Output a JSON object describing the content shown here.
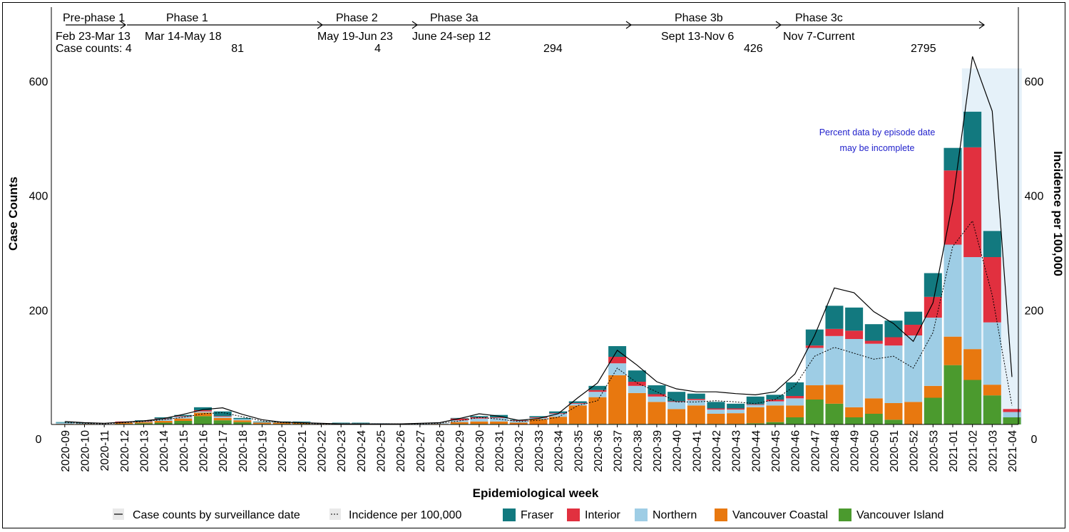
{
  "chart_data": {
    "type": "bar",
    "title": "",
    "xlabel": "Epidemiological week",
    "ylabel": "Case Counts",
    "y2label": "Incidence per 100,000",
    "ylim": [
      0,
      620
    ],
    "y2lim": [
      0,
      620
    ],
    "yticks": [
      0,
      200,
      400,
      600
    ],
    "y2ticks": [
      0,
      200,
      400,
      600
    ],
    "categories": [
      "2020-09",
      "2020-10",
      "2020-11",
      "2020-12",
      "2020-13",
      "2020-14",
      "2020-15",
      "2020-16",
      "2020-17",
      "2020-18",
      "2020-19",
      "2020-20",
      "2020-21",
      "2020-22",
      "2020-23",
      "2020-24",
      "2020-25",
      "2020-26",
      "2020-27",
      "2020-28",
      "2020-29",
      "2020-30",
      "2020-31",
      "2020-32",
      "2020-33",
      "2020-34",
      "2020-35",
      "2020-36",
      "2020-37",
      "2020-38",
      "2020-39",
      "2020-40",
      "2020-41",
      "2020-42",
      "2020-43",
      "2020-44",
      "2020-45",
      "2020-46",
      "2020-47",
      "2020-48",
      "2020-49",
      "2020-50",
      "2020-51",
      "2020-52",
      "2020-53",
      "2021-01",
      "2021-02",
      "2021-03",
      "2021-04"
    ],
    "series": [
      {
        "name": "Vancouver Island",
        "color": "#4b9a2e",
        "values": [
          0,
          0,
          0,
          1,
          2,
          3,
          6,
          14,
          7,
          4,
          1,
          1,
          1,
          0,
          0,
          0,
          0,
          0,
          0,
          0,
          1,
          1,
          1,
          0,
          0,
          1,
          1,
          1,
          1,
          1,
          1,
          1,
          1,
          1,
          1,
          2,
          4,
          12,
          42,
          35,
          12,
          18,
          8,
          0,
          45,
          100,
          75,
          49,
          12
        ]
      },
      {
        "name": "Vancouver Coastal",
        "color": "#e8780f",
        "values": [
          1,
          1,
          0,
          2,
          2,
          3,
          4,
          6,
          4,
          3,
          2,
          2,
          2,
          1,
          1,
          1,
          1,
          0,
          0,
          1,
          3,
          4,
          4,
          3,
          9,
          12,
          31,
          45,
          82,
          52,
          37,
          25,
          31,
          17,
          18,
          27,
          28,
          20,
          24,
          32,
          17,
          26,
          28,
          38,
          20,
          48,
          52,
          18,
          0
        ]
      },
      {
        "name": "Northern",
        "color": "#9ecde5",
        "values": [
          2,
          1,
          0,
          1,
          1,
          3,
          3,
          2,
          2,
          2,
          1,
          1,
          1,
          1,
          1,
          1,
          1,
          1,
          1,
          1,
          3,
          5,
          6,
          3,
          2,
          5,
          3,
          9,
          20,
          12,
          9,
          12,
          9,
          7,
          6,
          4,
          7,
          12,
          63,
          82,
          115,
          92,
          97,
          112,
          115,
          155,
          155,
          105,
          9
        ]
      },
      {
        "name": "Interior",
        "color": "#e1303f",
        "values": [
          0,
          0,
          0,
          1,
          1,
          1,
          1,
          2,
          1,
          0,
          0,
          0,
          0,
          0,
          0,
          0,
          0,
          0,
          0,
          0,
          3,
          2,
          1,
          1,
          1,
          1,
          1,
          3,
          11,
          7,
          4,
          1,
          2,
          2,
          2,
          1,
          3,
          4,
          4,
          12,
          14,
          5,
          14,
          18,
          35,
          125,
          185,
          110,
          5
        ]
      },
      {
        "name": "Fraser",
        "color": "#12797f",
        "values": [
          1,
          1,
          0,
          0,
          1,
          2,
          2,
          5,
          8,
          2,
          1,
          1,
          1,
          0,
          1,
          1,
          0,
          0,
          0,
          0,
          1,
          2,
          4,
          1,
          2,
          3,
          3,
          7,
          18,
          19,
          15,
          16,
          9,
          11,
          8,
          13,
          8,
          23,
          27,
          39,
          39,
          28,
          28,
          22,
          40,
          38,
          60,
          44,
          0
        ]
      }
    ],
    "lines": [
      {
        "name": "Case counts by surveillance date",
        "style": "solid",
        "values": [
          5,
          3,
          2,
          4,
          6,
          10,
          17,
          25,
          28,
          17,
          8,
          4,
          3,
          2,
          1,
          1,
          1,
          1,
          2,
          3,
          10,
          18,
          14,
          7,
          10,
          18,
          45,
          70,
          125,
          100,
          72,
          60,
          55,
          55,
          52,
          50,
          55,
          85,
          150,
          230,
          222,
          190,
          170,
          140,
          205,
          375,
          620,
          528,
          80
        ]
      },
      {
        "name": "Incidence per 100,000",
        "style": "dotted",
        "values": [
          3,
          2,
          1,
          3,
          5,
          8,
          12,
          18,
          20,
          13,
          6,
          3,
          2,
          1,
          1,
          1,
          1,
          1,
          1,
          2,
          6,
          12,
          9,
          5,
          7,
          12,
          32,
          40,
          95,
          70,
          55,
          38,
          38,
          40,
          38,
          35,
          42,
          65,
          115,
          130,
          120,
          110,
          115,
          95,
          155,
          300,
          343,
          218,
          32
        ]
      }
    ],
    "shaded_region": {
      "from": "2021-02",
      "to": "2021-04"
    },
    "annotation": [
      "Percent data by episode date",
      "may be incomplete"
    ],
    "phases": [
      {
        "name": "Pre-phase 1",
        "dates": "Feb 23-Mar 13",
        "cases": "Case counts: 4"
      },
      {
        "name": "Phase 1",
        "dates": "Mar 14-May 18",
        "cases": "81"
      },
      {
        "name": "Phase 2",
        "dates": "May 19-Jun 23",
        "cases": "4"
      },
      {
        "name": "Phase 3a",
        "dates": "June 24-sep 12",
        "cases": "294"
      },
      {
        "name": "Phase 3b",
        "dates": "Sept 13-Nov 6",
        "cases": "426"
      },
      {
        "name": "Phase 3c",
        "dates": "Nov 7-Current",
        "cases": "2795"
      }
    ],
    "legend": [
      "Case counts by surveillance date",
      "Incidence per 100,000",
      "Fraser",
      "Interior",
      "Northern",
      "Vancouver Coastal",
      "Vancouver Island"
    ]
  }
}
